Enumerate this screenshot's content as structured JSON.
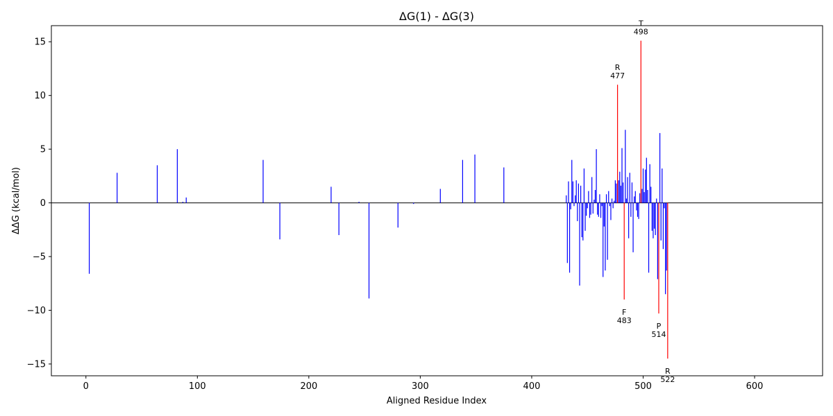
{
  "chart_data": {
    "type": "bar",
    "title": "ΔG(1) - ΔG(3)",
    "xlabel": "Aligned Residue Index",
    "ylabel": "ΔΔG (kcal/mol)",
    "xlim": [
      -31,
      661
    ],
    "ylim": [
      -16.1,
      16.5
    ],
    "xticks": [
      0,
      100,
      200,
      300,
      400,
      500,
      600
    ],
    "yticks": [
      -15,
      -10,
      -5,
      0,
      5,
      10,
      15
    ],
    "zero_line": true,
    "colors": {
      "default": "#0000ff",
      "highlight": "#ff0000",
      "zero_line": "#000000"
    },
    "bars": [
      {
        "x": 3,
        "y": -6.6
      },
      {
        "x": 28,
        "y": 2.8
      },
      {
        "x": 64,
        "y": 3.5
      },
      {
        "x": 82,
        "y": 5.0
      },
      {
        "x": 87,
        "y": 0.1
      },
      {
        "x": 90,
        "y": 0.5
      },
      {
        "x": 159,
        "y": 4.0
      },
      {
        "x": 174,
        "y": -3.4
      },
      {
        "x": 220,
        "y": 1.5
      },
      {
        "x": 227,
        "y": -3.0
      },
      {
        "x": 245,
        "y": 0.1
      },
      {
        "x": 254,
        "y": -8.9
      },
      {
        "x": 280,
        "y": -2.3
      },
      {
        "x": 294,
        "y": -0.1
      },
      {
        "x": 318,
        "y": 1.3
      },
      {
        "x": 338,
        "y": 4.0
      },
      {
        "x": 349,
        "y": 4.5
      },
      {
        "x": 375,
        "y": 3.3
      },
      {
        "x": 431,
        "y": 0.7
      },
      {
        "x": 432,
        "y": -5.6
      },
      {
        "x": 433,
        "y": 2.0
      },
      {
        "x": 434,
        "y": -6.5
      },
      {
        "x": 435,
        "y": -0.6
      },
      {
        "x": 436,
        "y": 4.0
      },
      {
        "x": 437,
        "y": 2.0
      },
      {
        "x": 438,
        "y": -0.3
      },
      {
        "x": 439,
        "y": 0.7
      },
      {
        "x": 440,
        "y": 2.1
      },
      {
        "x": 441,
        "y": -1.7
      },
      {
        "x": 442,
        "y": 1.8
      },
      {
        "x": 443,
        "y": -7.7
      },
      {
        "x": 444,
        "y": 1.6
      },
      {
        "x": 445,
        "y": -3.2
      },
      {
        "x": 446,
        "y": -3.5
      },
      {
        "x": 447,
        "y": 3.2
      },
      {
        "x": 448,
        "y": -2.6
      },
      {
        "x": 449,
        "y": -1.2
      },
      {
        "x": 450,
        "y": -0.5
      },
      {
        "x": 451,
        "y": 1.1
      },
      {
        "x": 452,
        "y": -1.4
      },
      {
        "x": 453,
        "y": -1.1
      },
      {
        "x": 454,
        "y": 2.4
      },
      {
        "x": 455,
        "y": -1.0
      },
      {
        "x": 456,
        "y": 0.3
      },
      {
        "x": 457,
        "y": 1.2
      },
      {
        "x": 458,
        "y": 5.0
      },
      {
        "x": 459,
        "y": -1.1
      },
      {
        "x": 460,
        "y": -1.3
      },
      {
        "x": 461,
        "y": 0.8
      },
      {
        "x": 462,
        "y": -1.4
      },
      {
        "x": 463,
        "y": -0.3
      },
      {
        "x": 464,
        "y": -6.9
      },
      {
        "x": 465,
        "y": -2.2
      },
      {
        "x": 466,
        "y": -6.3
      },
      {
        "x": 467,
        "y": 0.8
      },
      {
        "x": 468,
        "y": -5.3
      },
      {
        "x": 469,
        "y": 1.1
      },
      {
        "x": 470,
        "y": -0.3
      },
      {
        "x": 471,
        "y": -1.6
      },
      {
        "x": 472,
        "y": 0.4
      },
      {
        "x": 473,
        "y": -0.5
      },
      {
        "x": 474,
        "y": 0.2
      },
      {
        "x": 475,
        "y": 2.1
      },
      {
        "x": 476,
        "y": 1.8
      },
      {
        "x": 477,
        "y": 11.0,
        "highlight": true
      },
      {
        "x": 478,
        "y": 2.1
      },
      {
        "x": 479,
        "y": 2.9
      },
      {
        "x": 480,
        "y": 1.6
      },
      {
        "x": 481,
        "y": 5.1
      },
      {
        "x": 482,
        "y": 1.9
      },
      {
        "x": 483,
        "y": -9.0,
        "highlight": true
      },
      {
        "x": 484,
        "y": 6.8
      },
      {
        "x": 485,
        "y": 0.4
      },
      {
        "x": 486,
        "y": 2.4
      },
      {
        "x": 487,
        "y": -3.3
      },
      {
        "x": 488,
        "y": 2.8
      },
      {
        "x": 489,
        "y": -1.3
      },
      {
        "x": 490,
        "y": 1.9
      },
      {
        "x": 491,
        "y": -4.6
      },
      {
        "x": 492,
        "y": 0.6
      },
      {
        "x": 493,
        "y": 1.1
      },
      {
        "x": 494,
        "y": -0.7
      },
      {
        "x": 495,
        "y": -1.3
      },
      {
        "x": 496,
        "y": -1.5
      },
      {
        "x": 497,
        "y": 0.9
      },
      {
        "x": 498,
        "y": 15.1,
        "highlight": true
      },
      {
        "x": 499,
        "y": 1.3
      },
      {
        "x": 500,
        "y": 3.2
      },
      {
        "x": 501,
        "y": 1.0
      },
      {
        "x": 502,
        "y": 3.1
      },
      {
        "x": 503,
        "y": 4.2
      },
      {
        "x": 504,
        "y": 1.2
      },
      {
        "x": 505,
        "y": -6.5
      },
      {
        "x": 506,
        "y": 3.6
      },
      {
        "x": 507,
        "y": 1.5
      },
      {
        "x": 508,
        "y": -2.6
      },
      {
        "x": 509,
        "y": -3.3
      },
      {
        "x": 510,
        "y": -2.4
      },
      {
        "x": 511,
        "y": -3.0
      },
      {
        "x": 512,
        "y": 0.4
      },
      {
        "x": 513,
        "y": -7.1
      },
      {
        "x": 514,
        "y": -10.3,
        "highlight": true
      },
      {
        "x": 515,
        "y": 6.5
      },
      {
        "x": 516,
        "y": -3.5
      },
      {
        "x": 517,
        "y": 3.2
      },
      {
        "x": 518,
        "y": -4.3
      },
      {
        "x": 519,
        "y": -0.5
      },
      {
        "x": 520,
        "y": -8.5
      },
      {
        "x": 521,
        "y": -6.3
      },
      {
        "x": 522,
        "y": -14.5,
        "highlight": true
      }
    ],
    "annotations": [
      {
        "residue": "T",
        "index": "498",
        "x": 498,
        "y": 15.1
      },
      {
        "residue": "R",
        "index": "477",
        "x": 477,
        "y": 11.0
      },
      {
        "residue": "F",
        "index": "483",
        "x": 483,
        "y": -9.0
      },
      {
        "residue": "P",
        "index": "514",
        "x": 514,
        "y": -10.3
      },
      {
        "residue": "R",
        "index": "522",
        "x": 522,
        "y": -14.5
      }
    ]
  }
}
